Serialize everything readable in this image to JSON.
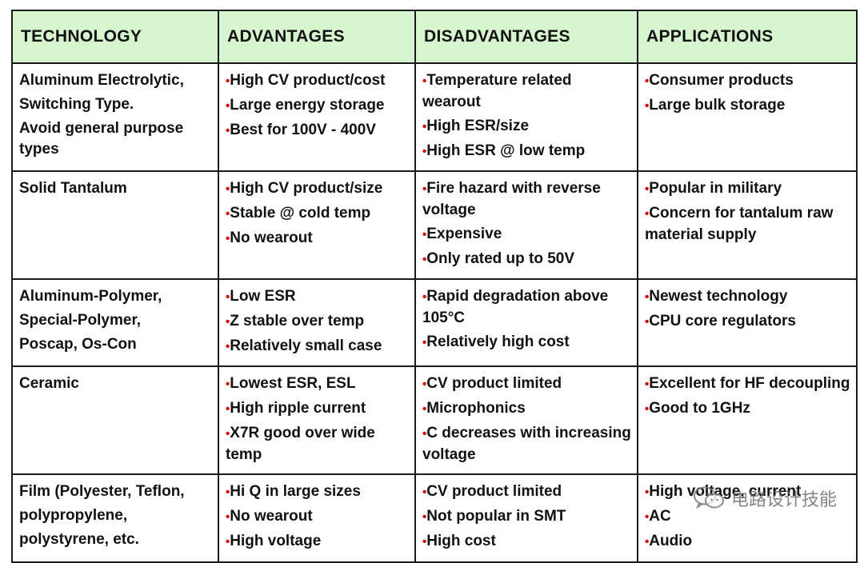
{
  "headers": [
    "TECHNOLOGY",
    "ADVANTAGES",
    "DISADVANTAGES",
    "APPLICATIONS"
  ],
  "rows": [
    {
      "technology": [
        "Aluminum Electrolytic,",
        "Switching Type.",
        "Avoid general purpose types"
      ],
      "advantages": [
        "High CV product/cost",
        "Large energy storage",
        "Best for 100V - 400V"
      ],
      "disadvantages": [
        "Temperature related wearout",
        "High ESR/size",
        "High ESR @ low temp"
      ],
      "applications": [
        "Consumer products",
        "Large bulk storage"
      ]
    },
    {
      "technology": [
        "Solid Tantalum"
      ],
      "advantages": [
        "High CV product/size",
        "Stable @ cold temp",
        "No wearout"
      ],
      "disadvantages": [
        "Fire hazard with reverse voltage",
        "Expensive",
        "Only rated up to 50V"
      ],
      "applications": [
        "Popular in military",
        "Concern for tantalum raw material supply"
      ]
    },
    {
      "technology": [
        "Aluminum-Polymer,",
        "Special-Polymer,",
        "Poscap, Os-Con"
      ],
      "advantages": [
        "Low ESR",
        "Z stable over temp",
        "Relatively small case"
      ],
      "disadvantages": [
        "Rapid degradation above 105°C",
        "Relatively high cost"
      ],
      "applications": [
        "Newest technology",
        "CPU core regulators"
      ]
    },
    {
      "technology": [
        "Ceramic"
      ],
      "advantages": [
        "Lowest ESR, ESL",
        "High ripple current",
        "X7R good over wide temp"
      ],
      "disadvantages": [
        "CV product limited",
        "Microphonics",
        "C decreases with increasing voltage"
      ],
      "applications": [
        "Excellent for HF decoupling",
        "Good to 1GHz"
      ]
    },
    {
      "technology": [
        "Film (Polyester, Teflon,",
        "polypropylene,",
        "polystyrene, etc."
      ],
      "advantages": [
        "Hi Q in large sizes",
        "No wearout",
        "High voltage"
      ],
      "disadvantages": [
        "CV product limited",
        "Not popular in SMT",
        "High cost"
      ],
      "applications": [
        "High voltage, current",
        "AC",
        "Audio"
      ]
    }
  ],
  "watermark": "电路设计技能",
  "colors": {
    "header_bg": "#d7f5cf",
    "bullet": "#d40000",
    "border": "#1a1a1a"
  }
}
